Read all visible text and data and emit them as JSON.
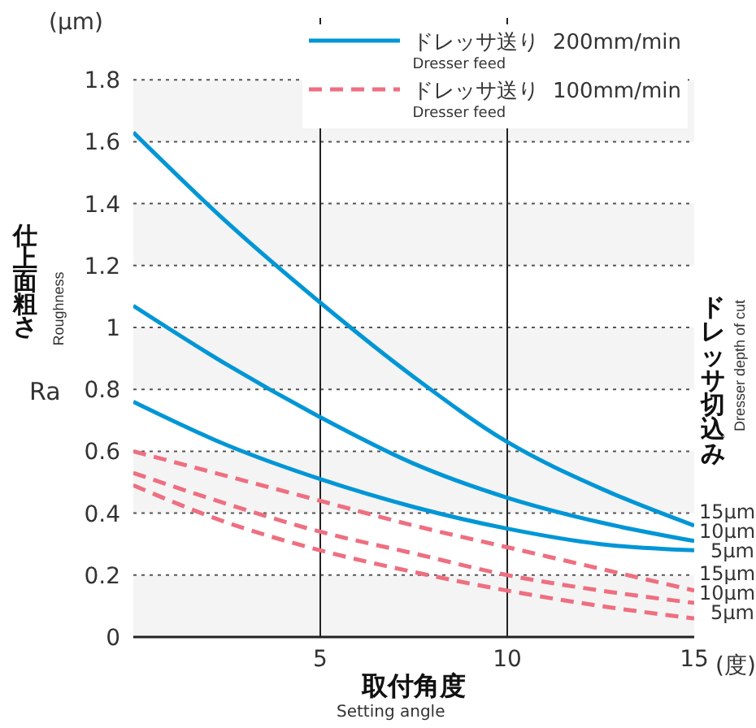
{
  "chart_data": {
    "type": "line",
    "xlabel": "取付角度",
    "ylabel": "仕上面粗さ",
    "y2label": "ドレッサ切込み",
    "x": [
      0,
      2.5,
      5,
      7.5,
      10,
      12.5,
      15
    ],
    "series": [
      {
        "name": "ドレッサ送り  200mm/min\nDresser feed",
        "color": "#0096d6",
        "line_style": "solid",
        "values": [
          1.63,
          1.34,
          1.08,
          0.84,
          0.63,
          0.48,
          0.36
        ]
      },
      {
        "color": "#0096d6",
        "line_style": "solid",
        "values": [
          1.07,
          0.88,
          0.71,
          0.56,
          0.45,
          0.37,
          0.31
        ]
      },
      {
        "color": "#0096d6",
        "line_style": "solid",
        "values": [
          0.76,
          0.62,
          0.51,
          0.42,
          0.35,
          0.3,
          0.28
        ]
      },
      {
        "name": "ドレッサ送り  100mm/min\nDresser feed",
        "color": "#ee6f80",
        "line_style": "dashed",
        "values": [
          0.6,
          0.52,
          0.44,
          0.36,
          0.29,
          0.22,
          0.15
        ]
      },
      {
        "color": "#ee6f80",
        "line_style": "dashed",
        "values": [
          0.53,
          0.43,
          0.34,
          0.27,
          0.2,
          0.15,
          0.11
        ]
      },
      {
        "color": "#ee6f80",
        "line_style": "dashed",
        "values": [
          0.49,
          0.37,
          0.28,
          0.21,
          0.15,
          0.1,
          0.06
        ]
      }
    ],
    "xlim": [
      0,
      15
    ],
    "xticks": [
      5,
      10,
      15
    ],
    "ylim": [
      0,
      2
    ],
    "yticks": [
      0,
      0.2,
      0.4,
      0.6,
      0.8,
      1.0,
      1.2,
      1.4,
      1.6,
      1.8
    ],
    "grid": true,
    "legend": "top right",
    "marker": "none",
    "bands": [
      {
        "axis": "y",
        "from": 0,
        "to": 0.2,
        "color": "#f4f4f4"
      },
      {
        "axis": "y",
        "from": 0.4,
        "to": 0.6,
        "color": "#f4f4f4"
      },
      {
        "axis": "y",
        "from": 0.8,
        "to": 1.0,
        "color": "#f4f4f4"
      },
      {
        "axis": "y",
        "from": 1.2,
        "to": 1.4,
        "color": "#f4f4f4"
      },
      {
        "axis": "y",
        "from": 1.6,
        "to": 1.8,
        "color": "#f4f4f4"
      }
    ],
    "annotations": [
      "(μm)",
      "Roughness",
      "Ra",
      "Dresser depth of cut",
      "(度)",
      "Setting angle",
      "15μm",
      "10μm",
      "5μm",
      "15μm",
      "10μm",
      "5μm"
    ]
  }
}
